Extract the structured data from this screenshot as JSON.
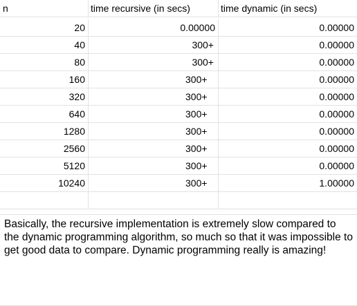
{
  "table": {
    "headers": [
      "n",
      "time recursive (in secs)",
      "time dynamic (in secs)"
    ],
    "rows": [
      {
        "n": "20",
        "recursive": "0.00000",
        "dynamic": "0.00000"
      },
      {
        "n": "40",
        "recursive": "300+",
        "dynamic": "0.00000"
      },
      {
        "n": "80",
        "recursive": "300+",
        "dynamic": "0.00000"
      },
      {
        "n": "160",
        "recursive": "300+",
        "dynamic": "0.00000"
      },
      {
        "n": "320",
        "recursive": "300+",
        "dynamic": "0.00000"
      },
      {
        "n": "640",
        "recursive": "300+",
        "dynamic": "0.00000"
      },
      {
        "n": "1280",
        "recursive": "300+",
        "dynamic": "0.00000"
      },
      {
        "n": "2560",
        "recursive": "300+",
        "dynamic": "0.00000"
      },
      {
        "n": "5120",
        "recursive": "300+",
        "dynamic": "0.00000"
      },
      {
        "n": "10240",
        "recursive": "300+",
        "dynamic": "1.00000"
      }
    ]
  },
  "note": {
    "text": "Basically, the recursive implementation is extremely slow compared to the dynamic programming algorithm, so much so that it was impossible to get good data to compare. Dynamic programming really is amazing!"
  }
}
